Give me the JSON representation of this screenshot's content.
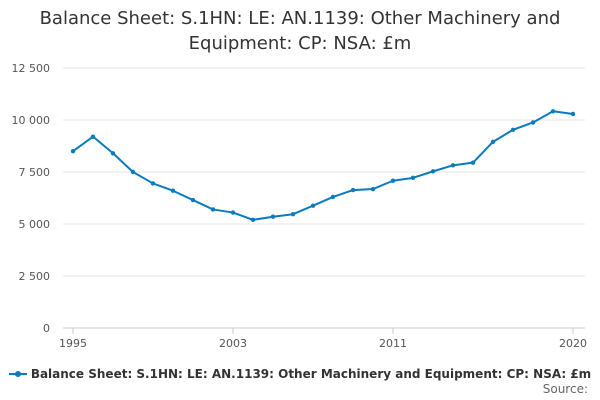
{
  "chart_data": {
    "type": "line",
    "title": "Balance Sheet: S.1HN: LE: AN.1139: Other Machinery and Equipment: CP: NSA: £m",
    "x": [
      1995,
      1996,
      1997,
      1998,
      1999,
      2000,
      2001,
      2002,
      2003,
      2004,
      2005,
      2006,
      2007,
      2008,
      2009,
      2010,
      2011,
      2012,
      2013,
      2014,
      2015,
      2016,
      2017,
      2018,
      2019,
      2020
    ],
    "series": [
      {
        "name": "Balance Sheet: S.1HN: LE: AN.1139: Other Machinery and Equipment: CP: NSA: £m",
        "values": [
          8500,
          9200,
          8400,
          7500,
          6950,
          6600,
          6150,
          5700,
          5550,
          5200,
          5350,
          5470,
          5880,
          6300,
          6630,
          6680,
          7080,
          7220,
          7530,
          7820,
          7950,
          8950,
          9530,
          9880,
          10420,
          10290
        ]
      }
    ],
    "xticks": [
      "1995",
      "2003",
      "2011",
      "2020"
    ],
    "xtick_values": [
      1995,
      2003,
      2011,
      2020
    ],
    "yticks": [
      "0",
      "2 500",
      "5 000",
      "7 500",
      "10 000",
      "12 500"
    ],
    "ytick_values": [
      0,
      2500,
      5000,
      7500,
      10000,
      12500
    ],
    "ylim": [
      0,
      12500
    ],
    "xlim": [
      1995,
      2020
    ],
    "xlabel": "",
    "ylabel": "",
    "grid": true,
    "legend_position": "bottom",
    "source_label": "Source:",
    "color": "#0a7bbd"
  }
}
